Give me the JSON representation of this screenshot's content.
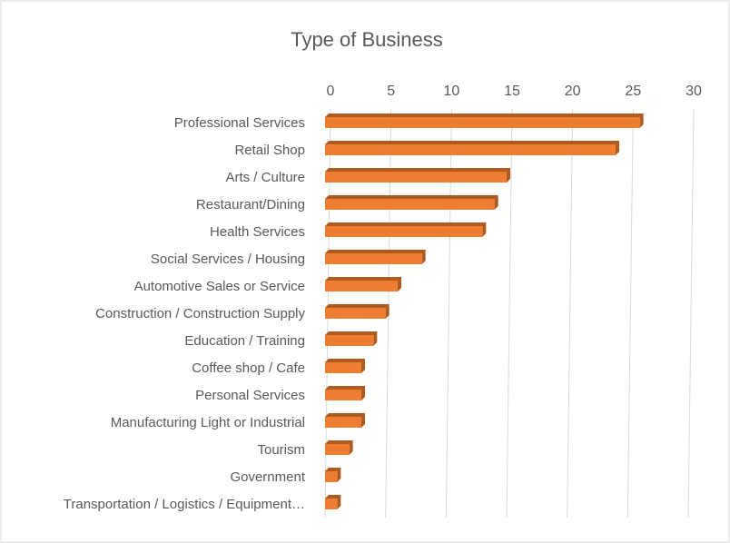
{
  "chart_data": {
    "type": "bar",
    "orientation": "horizontal",
    "title": "Type of Business",
    "categories": [
      "Professional Services",
      "Retail Shop",
      "Arts / Culture",
      "Restaurant/Dining",
      "Health Services",
      "Social Services / Housing",
      "Automotive Sales or Service",
      "Construction / Construction Supply",
      "Education / Training",
      "Coffee shop / Cafe",
      "Personal Services",
      "Manufacturing Light or Industrial",
      "Tourism",
      "Government",
      "Transportation / Logistics / Equipment…"
    ],
    "values": [
      26,
      24,
      15,
      14,
      13,
      8,
      6,
      5,
      4,
      3,
      3,
      3,
      2,
      1,
      1
    ],
    "color": "#ed7d31",
    "xlim": [
      0,
      30
    ],
    "xticks": [
      0,
      5,
      10,
      15,
      20,
      25,
      30
    ],
    "grid": true
  }
}
